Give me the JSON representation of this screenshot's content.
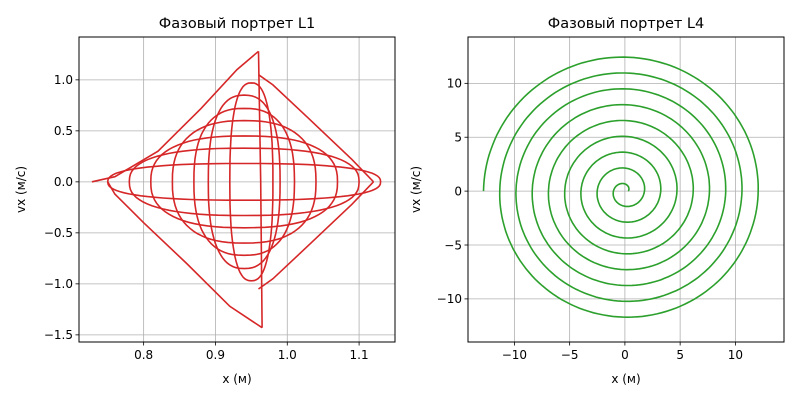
{
  "chart_data": [
    {
      "type": "line",
      "title": "Фазовый портрет L1",
      "xlabel": "x (м)",
      "ylabel": "vx (м/с)",
      "xlim": [
        0.71,
        1.15
      ],
      "ylim": [
        -1.57,
        1.42
      ],
      "xticks": [
        0.8,
        0.9,
        1.0,
        1.1
      ],
      "xtick_labels": [
        "0.8",
        "0.9",
        "1.0",
        "1.1"
      ],
      "yticks": [
        -1.5,
        -1.0,
        -0.5,
        0.0,
        0.5,
        1.0
      ],
      "ytick_labels": [
        "−1.5",
        "−1.0",
        "−0.5",
        "0.0",
        "0.5",
        "1.0"
      ],
      "grid": true,
      "color": "#d62728",
      "series": [
        {
          "x": [
            0.728,
            0.76,
            0.82,
            0.88,
            0.93,
            0.96
          ],
          "y": [
            0.0,
            0.05,
            0.3,
            0.72,
            1.1,
            1.28
          ]
        },
        {
          "x": [
            0.96,
            0.963,
            0.965
          ],
          "y": [
            1.28,
            0.0,
            -1.43
          ]
        },
        {
          "x": [
            0.965,
            0.92,
            0.86,
            0.8,
            0.76,
            0.75
          ],
          "y": [
            -1.43,
            -1.22,
            -0.8,
            -0.4,
            -0.12,
            0.0
          ]
        },
        {
          "x": [
            1.12,
            1.09,
            1.03,
            0.98,
            0.96
          ],
          "y": [
            0.0,
            0.22,
            0.62,
            0.95,
            1.05
          ]
        },
        {
          "x": [
            1.12,
            1.09,
            1.03,
            0.98,
            0.96
          ],
          "y": [
            0.0,
            -0.22,
            -0.62,
            -0.95,
            -1.05
          ]
        }
      ],
      "loops": [
        {
          "cx": 0.94,
          "cy": 0.0,
          "rx": 0.19,
          "ry": 0.18
        },
        {
          "cx": 0.94,
          "cy": 0.0,
          "rx": 0.16,
          "ry": 0.33
        },
        {
          "cx": 0.94,
          "cy": 0.0,
          "rx": 0.13,
          "ry": 0.45
        },
        {
          "cx": 0.94,
          "cy": 0.0,
          "rx": 0.1,
          "ry": 0.6
        },
        {
          "cx": 0.94,
          "cy": 0.0,
          "rx": 0.07,
          "ry": 0.72
        },
        {
          "cx": 0.94,
          "cy": 0.0,
          "rx": 0.05,
          "ry": 0.85
        },
        {
          "cx": 0.95,
          "cy": 0.0,
          "rx": 0.03,
          "ry": 0.97
        }
      ]
    },
    {
      "type": "line",
      "title": "Фазовый портрет L4",
      "xlabel": "x (м)",
      "ylabel": "vx (м/с)",
      "xlim": [
        -14.2,
        14.4
      ],
      "ylim": [
        -14.0,
        14.3
      ],
      "xticks": [
        -10,
        -5,
        0,
        5,
        10
      ],
      "xtick_labels": [
        "−10",
        "−5",
        "0",
        "5",
        "10"
      ],
      "yticks": [
        -10,
        -5,
        0,
        5,
        10
      ],
      "ytick_labels": [
        "−10",
        "−5",
        "0",
        "5",
        "10"
      ],
      "grid": true,
      "color": "#2ca02c",
      "spiral": {
        "r_start": 0.3,
        "r_end": 12.8,
        "turns": 8.5,
        "end_x": 6.3,
        "end_y": -11.3
      }
    }
  ]
}
